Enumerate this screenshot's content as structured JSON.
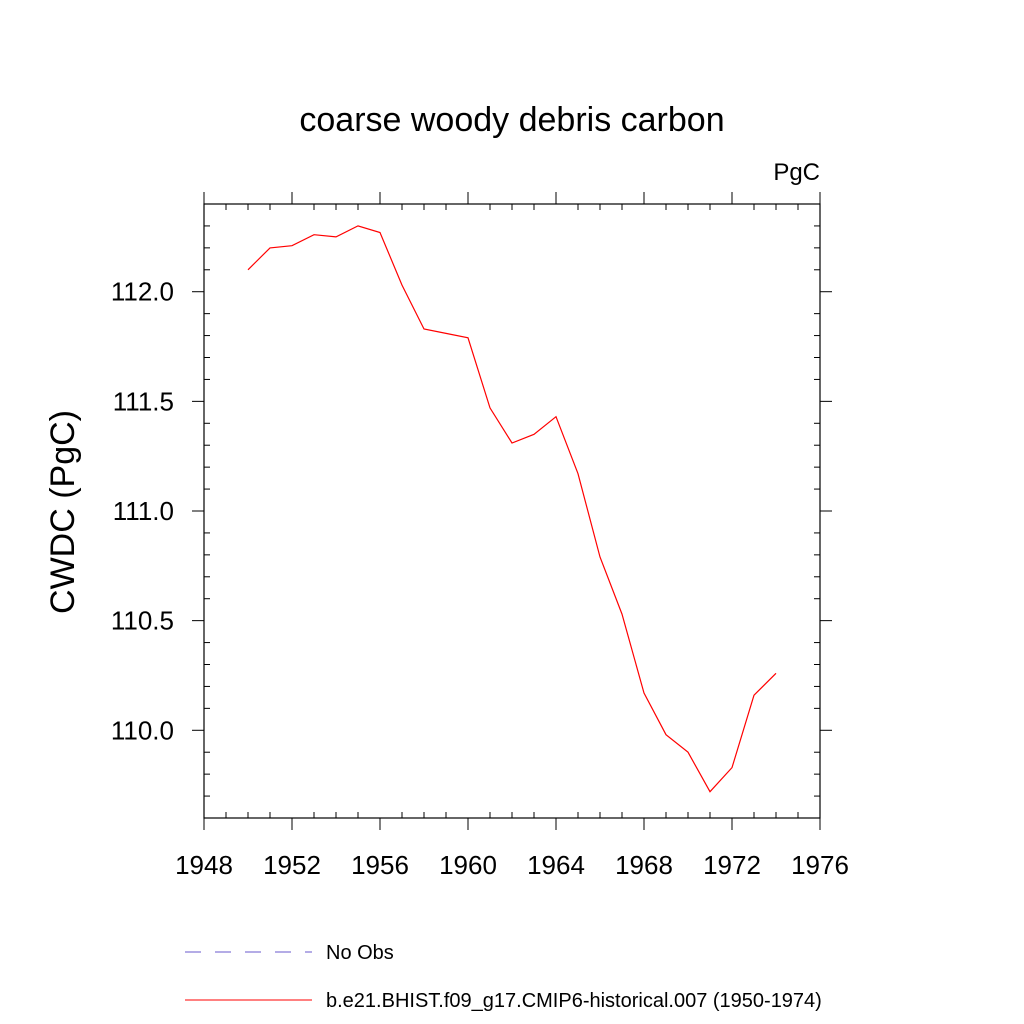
{
  "chart_data": {
    "type": "line",
    "title": "coarse woody debris carbon",
    "units_label": "PgC",
    "xlabel": "",
    "ylabel": "CWDC  (PgC)",
    "xlim": [
      1948,
      1976
    ],
    "ylim": [
      109.6,
      112.4
    ],
    "x_ticks": [
      "1948",
      "1952",
      "1956",
      "1960",
      "1964",
      "1968",
      "1972",
      "1976"
    ],
    "y_ticks": [
      "110.0",
      "110.5",
      "111.0",
      "111.5",
      "112.0"
    ],
    "grid": false,
    "legend_placement": "bottom",
    "legend": [
      {
        "label": "No Obs",
        "color": "#6a5acd",
        "style": "dashed"
      },
      {
        "label": "b.e21.BHIST.f09_g17.CMIP6-historical.007 (1950-1974)",
        "color": "#ff0000",
        "style": "solid"
      }
    ],
    "series": [
      {
        "name": "b.e21.BHIST.f09_g17.CMIP6-historical.007 (1950-1974)",
        "color": "#ff0000",
        "x": [
          1950,
          1951,
          1952,
          1953,
          1954,
          1955,
          1956,
          1957,
          1958,
          1959,
          1960,
          1961,
          1962,
          1963,
          1964,
          1965,
          1966,
          1967,
          1968,
          1969,
          1970,
          1971,
          1972,
          1973,
          1974
        ],
        "y": [
          112.1,
          112.2,
          112.21,
          112.26,
          112.25,
          112.3,
          112.27,
          112.03,
          111.83,
          111.81,
          111.79,
          111.47,
          111.31,
          111.35,
          111.43,
          111.17,
          110.79,
          110.53,
          110.17,
          109.98,
          109.9,
          109.72,
          109.83,
          110.16,
          110.26
        ]
      }
    ]
  }
}
